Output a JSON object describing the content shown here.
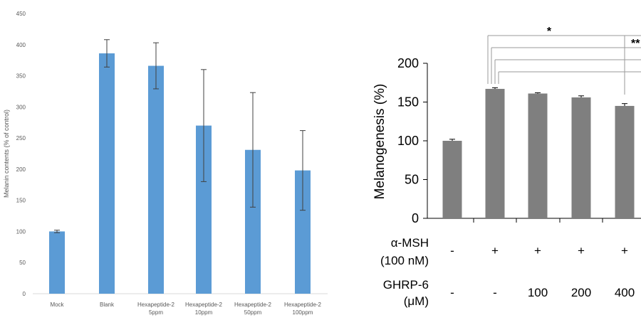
{
  "chart_data": [
    {
      "type": "bar",
      "title": "",
      "ylabel": "Melanin contents (% of control)",
      "xlabel": "",
      "ylim": [
        0,
        450
      ],
      "yticks": [
        0,
        50,
        100,
        150,
        200,
        250,
        300,
        350,
        400,
        450
      ],
      "grid": false,
      "bar_color": "#5b9bd5",
      "categories": [
        [
          "Mock"
        ],
        [
          "Blank"
        ],
        [
          "Hexapeptide-2",
          "5ppm"
        ],
        [
          "Hexapeptide-2",
          "10ppm"
        ],
        [
          "Hexapeptide-2",
          "50ppm"
        ],
        [
          "Hexapeptide-2",
          "100ppm"
        ]
      ],
      "values": [
        100,
        386,
        366,
        270,
        231,
        198
      ],
      "errors": [
        2,
        22,
        37,
        90,
        92,
        64
      ]
    },
    {
      "type": "bar",
      "title": "",
      "ylabel": "Melanogenesis (%)",
      "xlabel": "",
      "ylim": [
        0,
        200
      ],
      "yticks": [
        0,
        50,
        100,
        150,
        200
      ],
      "grid": false,
      "bar_color": "#7f7f7f",
      "values": [
        100,
        167,
        161,
        156,
        145
      ],
      "errors": [
        2,
        1.5,
        1,
        2,
        3
      ],
      "treatment_rows": [
        {
          "label": [
            "α-MSH",
            "(100 nM)"
          ],
          "values": [
            "-",
            "+",
            "+",
            "+",
            "+"
          ]
        },
        {
          "label": [
            "GHRP-6",
            "(μM)"
          ],
          "values": [
            "-",
            "-",
            "100",
            "200",
            "400"
          ]
        }
      ],
      "significance": [
        {
          "label": "*",
          "from": 1,
          "to": 4
        },
        {
          "label": "**",
          "from": 1,
          "to": 4
        }
      ]
    }
  ]
}
